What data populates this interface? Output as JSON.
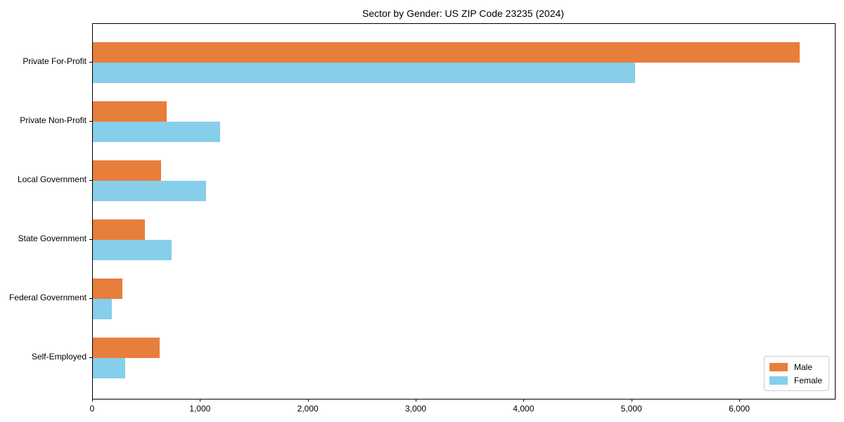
{
  "chart_data": {
    "type": "bar",
    "orientation": "horizontal",
    "title": "Sector by Gender: US ZIP Code 23235 (2024)",
    "categories": [
      "Private For-Profit",
      "Private Non-Profit",
      "Local Government",
      "State Government",
      "Federal Government",
      "Self-Employed"
    ],
    "series": [
      {
        "name": "Male",
        "color": "#e87e3c",
        "values": [
          6553,
          686,
          633,
          479,
          276,
          616
        ]
      },
      {
        "name": "Female",
        "color": "#87ceeb",
        "values": [
          5028,
          1178,
          1051,
          729,
          176,
          302
        ]
      }
    ],
    "xlabel": "",
    "ylabel": "",
    "xlim": [
      0,
      6880
    ],
    "xticks": [
      0,
      1000,
      2000,
      3000,
      4000,
      5000,
      6000
    ],
    "xtick_labels": [
      "0",
      "1,000",
      "2,000",
      "3,000",
      "4,000",
      "5,000",
      "6,000"
    ],
    "grid": false,
    "legend": {
      "position": "lower right",
      "entries": [
        "Male",
        "Female"
      ]
    },
    "colors": {
      "male": "#e87e3c",
      "female": "#87ceeb",
      "spine": "#000000",
      "background": "#ffffff"
    }
  }
}
